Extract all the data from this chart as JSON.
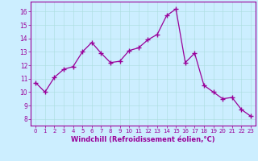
{
  "x": [
    0,
    1,
    2,
    3,
    4,
    5,
    6,
    7,
    8,
    9,
    10,
    11,
    12,
    13,
    14,
    15,
    16,
    17,
    18,
    19,
    20,
    21,
    22,
    23
  ],
  "y": [
    10.7,
    10.0,
    11.1,
    11.7,
    11.9,
    13.0,
    13.7,
    12.9,
    12.2,
    12.3,
    13.1,
    13.3,
    13.9,
    14.3,
    15.7,
    16.2,
    12.2,
    12.9,
    10.5,
    10.0,
    9.5,
    9.6,
    8.7,
    8.2
  ],
  "xlim": [
    -0.5,
    23.5
  ],
  "ylim": [
    7.5,
    16.75
  ],
  "yticks": [
    8,
    9,
    10,
    11,
    12,
    13,
    14,
    15,
    16
  ],
  "xticks": [
    0,
    1,
    2,
    3,
    4,
    5,
    6,
    7,
    8,
    9,
    10,
    11,
    12,
    13,
    14,
    15,
    16,
    17,
    18,
    19,
    20,
    21,
    22,
    23
  ],
  "xlabel": "Windchill (Refroidissement éolien,°C)",
  "line_color": "#990099",
  "marker_color": "#990099",
  "bg_color": "#cceeff",
  "grid_color": "#aadddd",
  "axis_label_color": "#990099",
  "tick_color": "#990099",
  "spine_color": "#990099"
}
